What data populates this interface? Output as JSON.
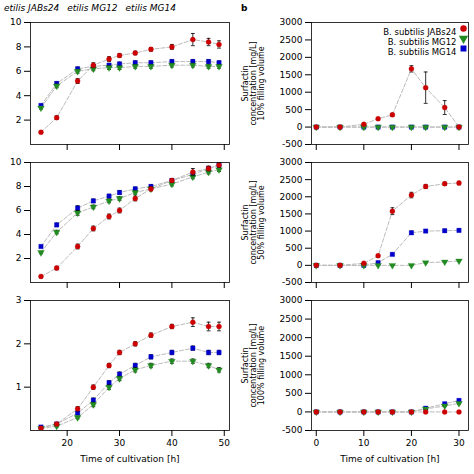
{
  "chart_data": [
    {
      "type": "line",
      "line_style": "dashed",
      "tick_labels": "y",
      "annotations": [
        "etilis JABs24",
        "etilis MG12",
        "etilis MG14"
      ],
      "x": [
        15,
        18,
        22,
        25,
        28,
        30,
        33,
        36,
        40,
        44,
        47,
        49
      ],
      "xlim": [
        13,
        51
      ],
      "xticks": [
        20,
        30,
        40,
        50
      ],
      "ylim": [
        0,
        10
      ],
      "yticks": [
        2,
        4,
        6,
        8,
        10
      ],
      "series": [
        {
          "name": "B. subtilis MG14",
          "color": "#0000cc",
          "marker": "square",
          "values": [
            3.2,
            5.0,
            6.2,
            6.4,
            6.5,
            6.6,
            6.7,
            6.7,
            6.8,
            6.8,
            6.8,
            6.7
          ],
          "yerr": [
            0.1,
            0.15,
            0.15,
            0.15,
            0.15,
            0.15,
            0.15,
            0.15,
            0.15,
            0.15,
            0.15,
            0.15
          ]
        },
        {
          "name": "B. subtilis MG12",
          "color": "#228B22",
          "marker": "triangle-down",
          "values": [
            3.0,
            4.8,
            6.0,
            6.2,
            6.3,
            6.3,
            6.4,
            6.4,
            6.5,
            6.5,
            6.4,
            6.4
          ],
          "yerr": [
            0.1,
            0.15,
            0.15,
            0.15,
            0.15,
            0.15,
            0.15,
            0.15,
            0.15,
            0.15,
            0.15,
            0.15
          ]
        },
        {
          "name": "B. subtilis JABs24",
          "color": "#cc0000",
          "marker": "circle",
          "values": [
            1.0,
            2.2,
            5.2,
            6.5,
            7.0,
            7.3,
            7.5,
            7.8,
            8.0,
            8.6,
            8.4,
            8.2
          ],
          "yerr": [
            0.1,
            0.15,
            0.2,
            0.2,
            0.2,
            0.15,
            0.15,
            0.15,
            0.2,
            0.5,
            0.3,
            0.3
          ]
        }
      ]
    },
    {
      "type": "line",
      "line_style": "dashed",
      "tick_labels": "y",
      "annotations": [
        "b"
      ],
      "legend": "upper right",
      "ylabel": "Surfactin\nconcentration [mg/L]\n10% filling volume",
      "x": [
        0,
        5,
        10,
        13,
        16,
        20,
        23,
        27,
        30
      ],
      "xlim": [
        -1,
        32
      ],
      "xticks": [
        0,
        10,
        20,
        30
      ],
      "ylim": [
        -500,
        3000
      ],
      "yticks": [
        -500,
        0,
        500,
        1000,
        1500,
        2000,
        2500,
        3000
      ],
      "series": [
        {
          "name": "B. subtilis MG14",
          "color": "#0000cc",
          "marker": "square",
          "values": [
            0,
            0,
            0,
            0,
            0,
            0,
            0,
            0,
            0
          ],
          "yerr": [
            3,
            3,
            3,
            3,
            3,
            3,
            3,
            3,
            3
          ]
        },
        {
          "name": "B. subtilis MG12",
          "color": "#228B22",
          "marker": "triangle-down",
          "values": [
            0,
            0,
            0,
            0,
            0,
            0,
            0,
            0,
            0
          ],
          "yerr": [
            3,
            3,
            3,
            3,
            3,
            3,
            3,
            3,
            3
          ]
        },
        {
          "name": "B. subtilis JABs24",
          "color": "#cc0000",
          "marker": "circle",
          "values": [
            0,
            0,
            80,
            240,
            350,
            1670,
            1130,
            560,
            0
          ],
          "yerr": [
            5,
            5,
            25,
            35,
            45,
            90,
            450,
            200,
            20
          ]
        }
      ]
    },
    {
      "type": "line",
      "line_style": "dashed",
      "tick_labels": "y",
      "x": [
        15,
        18,
        22,
        25,
        28,
        30,
        33,
        36,
        40,
        44,
        47,
        49
      ],
      "xlim": [
        13,
        51
      ],
      "xticks": [
        20,
        30,
        40,
        50
      ],
      "ylim": [
        0,
        10
      ],
      "yticks": [
        2,
        4,
        6,
        8,
        10
      ],
      "series": [
        {
          "name": "B. subtilis MG14",
          "color": "#0000cc",
          "marker": "square",
          "values": [
            3.0,
            4.8,
            6.2,
            6.8,
            7.2,
            7.5,
            7.8,
            8.0,
            8.5,
            9.0,
            9.5,
            9.8
          ],
          "yerr": [
            0.1,
            0.15,
            0.2,
            0.15,
            0.15,
            0.15,
            0.15,
            0.15,
            0.15,
            0.15,
            0.15,
            0.15
          ]
        },
        {
          "name": "B. subtilis MG12",
          "color": "#228B22",
          "marker": "triangle-down",
          "values": [
            2.5,
            4.2,
            5.8,
            6.3,
            6.8,
            7.0,
            7.5,
            7.8,
            8.2,
            8.8,
            9.2,
            9.4
          ],
          "yerr": [
            0.1,
            0.15,
            0.2,
            0.15,
            0.15,
            0.15,
            0.15,
            0.15,
            0.15,
            0.15,
            0.15,
            0.15
          ]
        },
        {
          "name": "B. subtilis JABs24",
          "color": "#cc0000",
          "marker": "circle",
          "values": [
            0.5,
            1.2,
            3.0,
            4.5,
            5.5,
            6.0,
            7.0,
            7.8,
            8.5,
            9.2,
            9.5,
            9.8
          ],
          "yerr": [
            0.1,
            0.15,
            0.2,
            0.2,
            0.2,
            0.2,
            0.2,
            0.15,
            0.15,
            0.3,
            0.2,
            0.2
          ]
        }
      ]
    },
    {
      "type": "line",
      "line_style": "dashed",
      "tick_labels": "y",
      "ylabel": "Surfactin\nconcentration [mg/L]\n50% filling volume",
      "x": [
        0,
        5,
        10,
        13,
        16,
        20,
        23,
        27,
        30
      ],
      "xlim": [
        -1,
        32
      ],
      "xticks": [
        0,
        10,
        20,
        30
      ],
      "ylim": [
        -500,
        3000
      ],
      "yticks": [
        -500,
        0,
        500,
        1000,
        1500,
        2000,
        2500,
        3000
      ],
      "series": [
        {
          "name": "B. subtilis MG14",
          "color": "#0000cc",
          "marker": "square",
          "values": [
            0,
            0,
            0,
            80,
            320,
            950,
            1000,
            1010,
            1020
          ],
          "yerr": [
            3,
            3,
            3,
            20,
            30,
            50,
            40,
            40,
            40
          ]
        },
        {
          "name": "B. subtilis MG12",
          "color": "#228B22",
          "marker": "triangle-down",
          "values": [
            0,
            0,
            0,
            0,
            0,
            0,
            80,
            100,
            130
          ],
          "yerr": [
            3,
            3,
            3,
            3,
            3,
            3,
            10,
            10,
            10
          ]
        },
        {
          "name": "B. subtilis JABs24",
          "color": "#cc0000",
          "marker": "circle",
          "values": [
            0,
            0,
            60,
            280,
            1580,
            2050,
            2300,
            2380,
            2400
          ],
          "yerr": [
            5,
            5,
            20,
            40,
            100,
            80,
            60,
            50,
            50
          ]
        }
      ]
    },
    {
      "type": "line",
      "line_style": "dashed",
      "xlabel": "Time of cultivation [h]",
      "x": [
        15,
        18,
        22,
        25,
        28,
        30,
        33,
        36,
        40,
        44,
        47,
        49
      ],
      "xlim": [
        13,
        51
      ],
      "xticks": [
        20,
        30,
        40,
        50
      ],
      "ylim": [
        0,
        3
      ],
      "yticks": [
        1,
        2,
        3
      ],
      "series": [
        {
          "name": "B. subtilis MG14",
          "color": "#0000cc",
          "marker": "square",
          "values": [
            0.08,
            0.15,
            0.4,
            0.7,
            1.1,
            1.3,
            1.5,
            1.7,
            1.8,
            1.9,
            1.8,
            1.8
          ],
          "yerr": [
            0.02,
            0.02,
            0.03,
            0.05,
            0.05,
            0.05,
            0.05,
            0.05,
            0.05,
            0.05,
            0.05,
            0.05
          ]
        },
        {
          "name": "B. subtilis MG12",
          "color": "#228B22",
          "marker": "triangle-down",
          "values": [
            0.05,
            0.1,
            0.3,
            0.6,
            1.0,
            1.2,
            1.4,
            1.5,
            1.6,
            1.6,
            1.5,
            1.4
          ],
          "yerr": [
            0.02,
            0.02,
            0.03,
            0.05,
            0.05,
            0.05,
            0.05,
            0.05,
            0.05,
            0.05,
            0.05,
            0.05
          ]
        },
        {
          "name": "B. subtilis JABs24",
          "color": "#cc0000",
          "marker": "circle",
          "values": [
            0.05,
            0.15,
            0.5,
            1.0,
            1.5,
            1.8,
            2.0,
            2.2,
            2.4,
            2.5,
            2.4,
            2.4
          ],
          "yerr": [
            0.02,
            0.03,
            0.05,
            0.05,
            0.05,
            0.05,
            0.05,
            0.05,
            0.05,
            0.1,
            0.1,
            0.1
          ]
        }
      ]
    },
    {
      "type": "line",
      "line_style": "dashed",
      "xlabel": "Time of cultivation [h]",
      "ylabel": "Surfactin\nconcentration [mg/L]\n100% filling volume",
      "x": [
        0,
        5,
        10,
        13,
        16,
        20,
        23,
        27,
        30
      ],
      "xlim": [
        -1,
        32
      ],
      "xticks": [
        0,
        10,
        20,
        30
      ],
      "ylim": [
        -500,
        3000
      ],
      "yticks": [
        -500,
        0,
        500,
        1000,
        1500,
        2000,
        2500,
        3000
      ],
      "series": [
        {
          "name": "B. subtilis MG14",
          "color": "#0000cc",
          "marker": "square",
          "values": [
            0,
            0,
            0,
            0,
            0,
            0,
            100,
            220,
            310
          ],
          "yerr": [
            3,
            3,
            3,
            3,
            3,
            3,
            15,
            20,
            25
          ]
        },
        {
          "name": "B. subtilis MG12",
          "color": "#228B22",
          "marker": "triangle-down",
          "values": [
            0,
            0,
            0,
            0,
            0,
            0,
            80,
            160,
            230
          ],
          "yerr": [
            3,
            3,
            3,
            3,
            3,
            3,
            10,
            15,
            20
          ]
        },
        {
          "name": "B. subtilis JABs24",
          "color": "#cc0000",
          "marker": "circle",
          "values": [
            0,
            0,
            0,
            0,
            0,
            0,
            0,
            0,
            0
          ],
          "yerr": [
            3,
            3,
            3,
            3,
            3,
            3,
            3,
            3,
            3
          ]
        }
      ]
    }
  ]
}
